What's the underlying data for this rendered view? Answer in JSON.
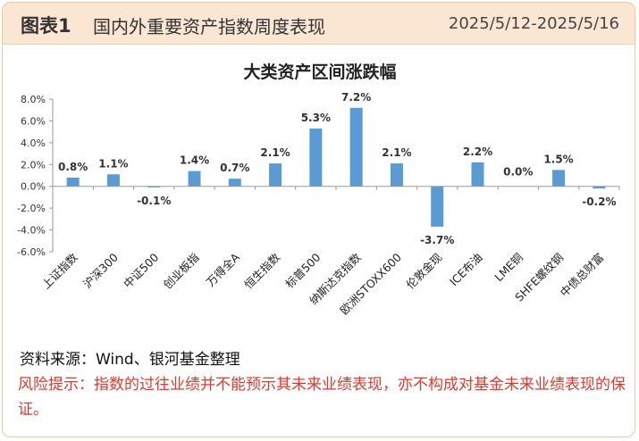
{
  "header": {
    "figure_label": "图表1",
    "title": "国内外重要资产指数周度表现",
    "date_range": "2025/5/12-2025/5/16"
  },
  "chart_data": {
    "type": "bar",
    "title": "大类资产区间涨跌幅",
    "categories": [
      "上证指数",
      "沪深300",
      "中证500",
      "创业板指",
      "万得全A",
      "恒生指数",
      "标普500",
      "纳斯达克指数",
      "欧洲STOXX600",
      "伦敦金现",
      "ICE布油",
      "LME铜",
      "SHFE螺纹钢",
      "中债总财富"
    ],
    "values": [
      0.8,
      1.1,
      -0.1,
      1.4,
      0.7,
      2.1,
      5.3,
      7.2,
      2.1,
      -3.7,
      2.2,
      0.0,
      1.5,
      -0.2
    ],
    "data_labels": [
      "0.8%",
      "1.1%",
      "-0.1%",
      "1.4%",
      "0.7%",
      "2.1%",
      "5.3%",
      "7.2%",
      "2.1%",
      "-3.7%",
      "2.2%",
      "0.0%",
      "1.5%",
      "-0.2%"
    ],
    "yticks": [
      8,
      6,
      4,
      2,
      0,
      -2,
      -4,
      -6
    ],
    "ytick_labels": [
      "8.0%",
      "6.0%",
      "4.0%",
      "2.0%",
      "0.0%",
      "-2.0%",
      "-4.0%",
      "-6.0%"
    ],
    "ylim": [
      -6,
      8
    ],
    "bar_color": "#5b9bd5",
    "grid": false,
    "legend": "none"
  },
  "footer": {
    "source": "资料来源：Wind、银河基金整理",
    "risk_warning": "风险提示：指数的过往业绩并不能预示其未来业绩表现，亦不构成对基金未来业绩表现的保证。",
    "risk_color": "#e8362b"
  }
}
